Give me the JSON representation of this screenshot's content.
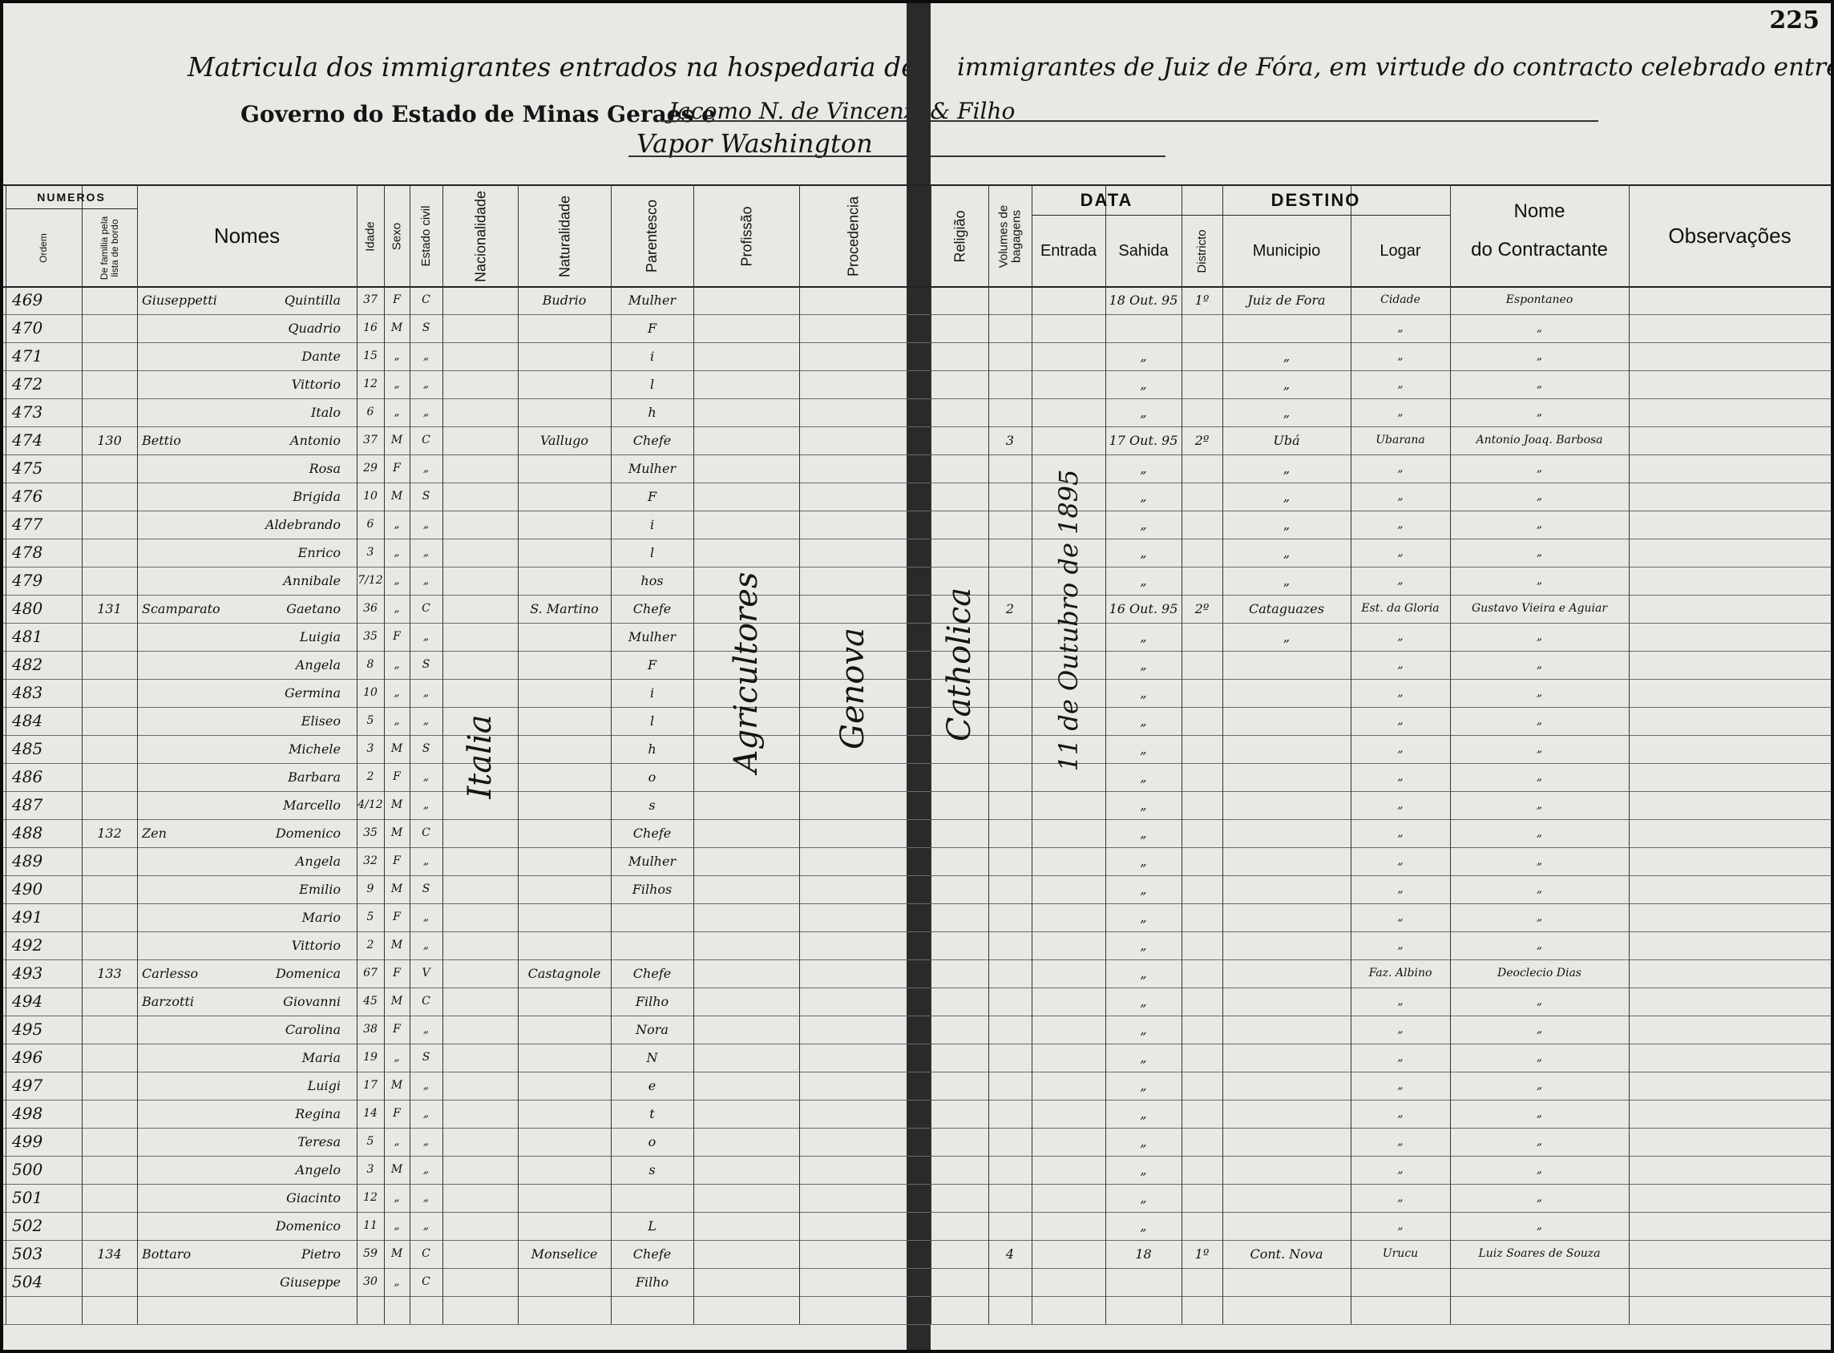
{
  "page_number": "225",
  "header": {
    "title_left": "Matricula dos immigrantes entrados na hospedaria de",
    "title_right": "immigrantes de Juiz de Fóra, em virtude do contracto celebrado entre o",
    "line2": "Governo do Estado de Minas Geraes e",
    "contractor": "Jacomo N. de Vincenzi & Filho",
    "ship": "Vapor Washington"
  },
  "table": {
    "headers": {
      "numeros": "NUMEROS",
      "ordem": "Ordem",
      "familia": "De familia pela lista de bordo",
      "nomes": "Nomes",
      "idade": "Idade",
      "sexo": "Sexo",
      "estado": "Estado civil",
      "nacionalidade": "Nacionalidade",
      "naturalidade": "Naturalidade",
      "parentesco": "Parentesco",
      "profissao": "Profissão",
      "procedencia": "Procedencia",
      "religiao": "Religião",
      "volumes": "Volumes de bagagens",
      "data": "DATA",
      "entrada": "Entrada",
      "sahida": "Sahida",
      "destino": "DESTINO",
      "districto": "Districto",
      "municipio": "Municipio",
      "logar": "Logar",
      "contractante_1": "Nome",
      "contractante_2": "do Contractante",
      "observacoes": "Observações"
    },
    "vertical_notes": {
      "nacionalidade": "Italia",
      "profissao": "Agricultores",
      "procedencia": "Genova",
      "religiao": "Catholica",
      "entrada": "11 de Outubro de 1895"
    },
    "rows": [
      {
        "ordem": "469",
        "sobrenome": "Giuseppetti",
        "nome": "Quintilla",
        "idade": "37",
        "sexo": "F",
        "estado": "C",
        "naturalidade": "Budrio",
        "parentesco": "Mulher",
        "sahida": "18 Out. 95",
        "districto": "1º",
        "municipio": "Juiz de Fora",
        "logar": "Cidade",
        "contractante": "Espontaneo"
      },
      {
        "ordem": "470",
        "nome": "Quadrio",
        "idade": "16",
        "sexo": "M",
        "estado": "S",
        "parentesco": "F",
        "logar": "„",
        "contractante": "„"
      },
      {
        "ordem": "471",
        "nome": "Dante",
        "idade": "15",
        "sexo": "„",
        "estado": "„",
        "parentesco": "i",
        "sahida": "„",
        "municipio": "„",
        "logar": "„",
        "contractante": "„"
      },
      {
        "ordem": "472",
        "nome": "Vittorio",
        "idade": "12",
        "sexo": "„",
        "estado": "„",
        "parentesco": "l",
        "sahida": "„",
        "municipio": "„",
        "logar": "„",
        "contractante": "„"
      },
      {
        "ordem": "473",
        "nome": "Italo",
        "idade": "6",
        "sexo": "„",
        "estado": "„",
        "parentesco": "h",
        "sahida": "„",
        "municipio": "„",
        "logar": "„",
        "contractante": "„"
      },
      {
        "ordem": "474",
        "familia": "130",
        "sobrenome": "Bettio",
        "nome": "Antonio",
        "idade": "37",
        "sexo": "M",
        "estado": "C",
        "naturalidade": "Vallugo",
        "parentesco": "Chefe",
        "volumes": "3",
        "sahida": "17 Out. 95",
        "districto": "2º",
        "municipio": "Ubá",
        "logar": "Ubarana",
        "contractante": "Antonio Joaq. Barbosa"
      },
      {
        "ordem": "475",
        "nome": "Rosa",
        "idade": "29",
        "sexo": "F",
        "estado": "„",
        "parentesco": "Mulher",
        "sahida": "„",
        "municipio": "„",
        "logar": "„",
        "contractante": "„"
      },
      {
        "ordem": "476",
        "nome": "Brigida",
        "idade": "10",
        "sexo": "M",
        "estado": "S",
        "parentesco": "F",
        "sahida": "„",
        "municipio": "„",
        "logar": "„",
        "contractante": "„"
      },
      {
        "ordem": "477",
        "nome": "Aldebrando",
        "idade": "6",
        "sexo": "„",
        "estado": "„",
        "parentesco": "i",
        "sahida": "„",
        "municipio": "„",
        "logar": "„",
        "contractante": "„"
      },
      {
        "ordem": "478",
        "nome": "Enrico",
        "idade": "3",
        "sexo": "„",
        "estado": "„",
        "parentesco": "l",
        "sahida": "„",
        "municipio": "„",
        "logar": "„",
        "contractante": "„"
      },
      {
        "ordem": "479",
        "nome": "Annibale",
        "idade": "7/12",
        "sexo": "„",
        "estado": "„",
        "parentesco": "hos",
        "sahida": "„",
        "municipio": "„",
        "logar": "„",
        "contractante": "„"
      },
      {
        "ordem": "480",
        "familia": "131",
        "sobrenome": "Scamparato",
        "nome": "Gaetano",
        "idade": "36",
        "sexo": "„",
        "estado": "C",
        "naturalidade": "S. Martino",
        "parentesco": "Chefe",
        "volumes": "2",
        "sahida": "16 Out. 95",
        "districto": "2º",
        "municipio": "Cataguazes",
        "logar": "Est. da Gloria",
        "contractante": "Gustavo Vieira e Aguiar"
      },
      {
        "ordem": "481",
        "nome": "Luigia",
        "idade": "35",
        "sexo": "F",
        "estado": "„",
        "parentesco": "Mulher",
        "sahida": "„",
        "municipio": "„",
        "logar": "„",
        "contractante": "„"
      },
      {
        "ordem": "482",
        "nome": "Angela",
        "idade": "8",
        "sexo": "„",
        "estado": "S",
        "parentesco": "F",
        "sahida": "„",
        "logar": "„",
        "contractante": "„"
      },
      {
        "ordem": "483",
        "nome": "Germina",
        "idade": "10",
        "sexo": "„",
        "estado": "„",
        "parentesco": "i",
        "sahida": "„",
        "logar": "„",
        "contractante": "„"
      },
      {
        "ordem": "484",
        "nome": "Eliseo",
        "idade": "5",
        "sexo": "„",
        "estado": "„",
        "parentesco": "l",
        "sahida": "„",
        "logar": "„",
        "contractante": "„"
      },
      {
        "ordem": "485",
        "nome": "Michele",
        "idade": "3",
        "sexo": "M",
        "estado": "S",
        "parentesco": "h",
        "sahida": "„",
        "logar": "„",
        "contractante": "„"
      },
      {
        "ordem": "486",
        "nome": "Barbara",
        "idade": "2",
        "sexo": "F",
        "estado": "„",
        "parentesco": "o",
        "sahida": "„",
        "logar": "„",
        "contractante": "„"
      },
      {
        "ordem": "487",
        "nome": "Marcello",
        "idade": "4/12",
        "sexo": "M",
        "estado": "„",
        "parentesco": "s",
        "sahida": "„",
        "logar": "„",
        "contractante": "„"
      },
      {
        "ordem": "488",
        "familia": "132",
        "sobrenome": "Zen",
        "nome": "Domenico",
        "idade": "35",
        "sexo": "M",
        "estado": "C",
        "parentesco": "Chefe",
        "sahida": "„",
        "logar": "„",
        "contractante": "„"
      },
      {
        "ordem": "489",
        "nome": "Angela",
        "idade": "32",
        "sexo": "F",
        "estado": "„",
        "parentesco": "Mulher",
        "sahida": "„",
        "logar": "„",
        "contractante": "„"
      },
      {
        "ordem": "490",
        "nome": "Emilio",
        "idade": "9",
        "sexo": "M",
        "estado": "S",
        "parentesco": "Filhos",
        "sahida": "„",
        "logar": "„",
        "contractante": "„"
      },
      {
        "ordem": "491",
        "nome": "Mario",
        "idade": "5",
        "sexo": "F",
        "estado": "„",
        "sahida": "„",
        "logar": "„",
        "contractante": "„"
      },
      {
        "ordem": "492",
        "nome": "Vittorio",
        "idade": "2",
        "sexo": "M",
        "estado": "„",
        "sahida": "„",
        "logar": "„",
        "contractante": "„"
      },
      {
        "ordem": "493",
        "familia": "133",
        "sobrenome": "Carlesso",
        "nome": "Domenica",
        "idade": "67",
        "sexo": "F",
        "estado": "V",
        "naturalidade": "Castagnole",
        "parentesco": "Chefe",
        "sahida": "„",
        "logar": "Faz. Albino",
        "contractante": "Deoclecio Dias"
      },
      {
        "ordem": "494",
        "sobrenome": "Barzotti",
        "nome": "Giovanni",
        "idade": "45",
        "sexo": "M",
        "estado": "C",
        "parentesco": "Filho",
        "sahida": "„",
        "logar": "„",
        "contractante": "„"
      },
      {
        "ordem": "495",
        "nome": "Carolina",
        "idade": "38",
        "sexo": "F",
        "estado": "„",
        "parentesco": "Nora",
        "sahida": "„",
        "logar": "„",
        "contractante": "„"
      },
      {
        "ordem": "496",
        "nome": "Maria",
        "idade": "19",
        "sexo": "„",
        "estado": "S",
        "parentesco": "N",
        "sahida": "„",
        "logar": "„",
        "contractante": "„"
      },
      {
        "ordem": "497",
        "nome": "Luigi",
        "idade": "17",
        "sexo": "M",
        "estado": "„",
        "parentesco": "e",
        "sahida": "„",
        "logar": "„",
        "contractante": "„"
      },
      {
        "ordem": "498",
        "nome": "Regina",
        "idade": "14",
        "sexo": "F",
        "estado": "„",
        "parentesco": "t",
        "sahida": "„",
        "logar": "„",
        "contractante": "„"
      },
      {
        "ordem": "499",
        "nome": "Teresa",
        "idade": "5",
        "sexo": "„",
        "estado": "„",
        "parentesco": "o",
        "sahida": "„",
        "logar": "„",
        "contractante": "„"
      },
      {
        "ordem": "500",
        "nome": "Angelo",
        "idade": "3",
        "sexo": "M",
        "estado": "„",
        "parentesco": "s",
        "sahida": "„",
        "logar": "„",
        "contractante": "„"
      },
      {
        "ordem": "501",
        "nome": "Giacinto",
        "idade": "12",
        "sexo": "„",
        "estado": "„",
        "sahida": "„",
        "logar": "„",
        "contractante": "„"
      },
      {
        "ordem": "502",
        "nome": "Domenico",
        "idade": "11",
        "sexo": "„",
        "estado": "„",
        "parentesco": "L",
        "sahida": "„",
        "logar": "„",
        "contractante": "„"
      },
      {
        "ordem": "503",
        "familia": "134",
        "sobrenome": "Bottaro",
        "nome": "Pietro",
        "idade": "59",
        "sexo": "M",
        "estado": "C",
        "naturalidade": "Monselice",
        "parentesco": "Chefe",
        "volumes": "4",
        "sahida": "18",
        "districto": "1º",
        "municipio": "Cont. Nova",
        "logar": "Urucu",
        "contractante": "Luiz Soares de Souza"
      },
      {
        "ordem": "504",
        "nome": "Giuseppe",
        "idade": "30",
        "sexo": "„",
        "estado": "C",
        "parentesco": "Filho"
      }
    ]
  }
}
